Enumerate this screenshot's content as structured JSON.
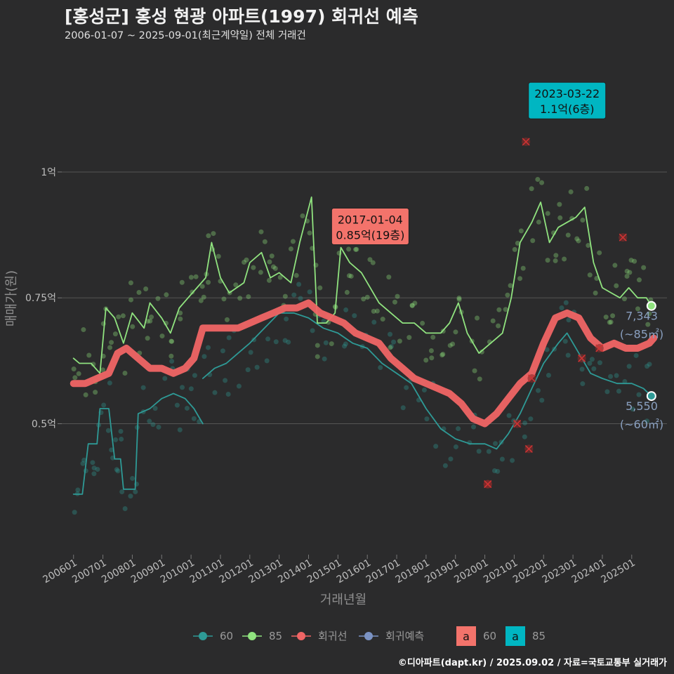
{
  "title": "[홍성군] 홍성 현광 아파트(1997) 회귀선 예측",
  "subtitle": "2006-01-07 ~ 2025-09-01(최근계약일) 전체 거래건",
  "credit": "©디아파트(dapt.kr) / 2025.09.02 / 자료=국토교통부 실거래가",
  "colors": {
    "s60": "#2e9a96",
    "s85": "#90e37f",
    "trend": "#f06565",
    "forecast": "#7b93c4",
    "grid": "#555555",
    "bg": "#2b2b2c"
  },
  "chart_data": {
    "type": "line",
    "xlabel": "거래년월",
    "ylabel": "매매가(원)",
    "x_range": [
      2005.6,
      2026.2
    ],
    "y_range": [
      0.24,
      1.23
    ],
    "y_ticks": [
      {
        "v": 0.5,
        "label": "0.5억"
      },
      {
        "v": 0.75,
        "label": "0.75억"
      },
      {
        "v": 1.0,
        "label": "1억"
      }
    ],
    "x_ticks": [
      "200601",
      "200701",
      "200801",
      "200901",
      "201001",
      "201101",
      "201201",
      "201301",
      "201401",
      "201501",
      "201601",
      "201701",
      "201801",
      "201901",
      "202001",
      "202101",
      "202201",
      "202301",
      "202401",
      "202501"
    ],
    "grid": "horizontal",
    "legend": {
      "placement": "bottom",
      "items": [
        {
          "key": "s60",
          "label": "60"
        },
        {
          "key": "s85",
          "label": "85"
        },
        {
          "key": "trend",
          "label": "회귀선"
        },
        {
          "key": "forecast",
          "label": "회귀예측"
        }
      ],
      "callout_items": [
        {
          "key": "s60",
          "label": "60",
          "letter": "a"
        },
        {
          "key": "s85",
          "label": "85",
          "letter": "a"
        }
      ]
    },
    "series": [
      {
        "name": "60",
        "key": "s60",
        "points": [
          [
            2006.0,
            0.36
          ],
          [
            2006.3,
            0.36
          ],
          [
            2006.5,
            0.46
          ],
          [
            2006.8,
            0.46
          ],
          [
            2006.9,
            0.53
          ],
          [
            2007.2,
            0.53
          ],
          [
            2007.4,
            0.43
          ],
          [
            2007.6,
            0.43
          ],
          [
            2007.7,
            0.37
          ],
          [
            2008.1,
            0.37
          ],
          [
            2008.2,
            0.52
          ],
          [
            2008.6,
            0.53
          ],
          [
            2009.0,
            0.55
          ],
          [
            2009.4,
            0.56
          ],
          [
            2009.8,
            0.55
          ],
          [
            2010.1,
            0.53
          ],
          [
            2010.4,
            0.5
          ]
        ]
      },
      {
        "name": "60",
        "key": "s60",
        "points": [
          [
            2010.4,
            0.59
          ],
          [
            2010.8,
            0.61
          ],
          [
            2011.2,
            0.62
          ],
          [
            2011.6,
            0.64
          ],
          [
            2012.0,
            0.66
          ],
          [
            2012.5,
            0.69
          ],
          [
            2013.0,
            0.72
          ],
          [
            2013.5,
            0.72
          ],
          [
            2014.0,
            0.71
          ],
          [
            2014.5,
            0.69
          ],
          [
            2015.0,
            0.68
          ],
          [
            2015.5,
            0.66
          ],
          [
            2016.0,
            0.65
          ],
          [
            2016.5,
            0.62
          ],
          [
            2017.0,
            0.6
          ],
          [
            2017.5,
            0.58
          ],
          [
            2018.0,
            0.53
          ],
          [
            2018.5,
            0.49
          ],
          [
            2019.0,
            0.47
          ],
          [
            2019.5,
            0.46
          ],
          [
            2020.0,
            0.46
          ],
          [
            2020.4,
            0.45
          ],
          [
            2020.8,
            0.48
          ],
          [
            2021.2,
            0.52
          ],
          [
            2021.6,
            0.57
          ],
          [
            2022.0,
            0.62
          ],
          [
            2022.5,
            0.66
          ],
          [
            2022.8,
            0.68
          ],
          [
            2023.2,
            0.64
          ],
          [
            2023.6,
            0.6
          ],
          [
            2024.0,
            0.59
          ],
          [
            2024.5,
            0.58
          ],
          [
            2025.0,
            0.58
          ],
          [
            2025.4,
            0.57
          ],
          [
            2025.67,
            0.555
          ]
        ]
      },
      {
        "name": "85",
        "key": "s85",
        "points": [
          [
            2006.0,
            0.63
          ],
          [
            2006.2,
            0.62
          ],
          [
            2006.6,
            0.62
          ],
          [
            2006.9,
            0.6
          ],
          [
            2007.1,
            0.73
          ],
          [
            2007.4,
            0.71
          ],
          [
            2007.7,
            0.66
          ],
          [
            2008.0,
            0.72
          ],
          [
            2008.4,
            0.69
          ],
          [
            2008.6,
            0.74
          ],
          [
            2009.0,
            0.71
          ],
          [
            2009.3,
            0.68
          ],
          [
            2009.6,
            0.73
          ],
          [
            2009.9,
            0.75
          ],
          [
            2010.2,
            0.77
          ],
          [
            2010.5,
            0.79
          ],
          [
            2010.7,
            0.86
          ],
          [
            2011.0,
            0.79
          ],
          [
            2011.3,
            0.76
          ],
          [
            2011.8,
            0.78
          ],
          [
            2012.0,
            0.82
          ],
          [
            2012.4,
            0.84
          ],
          [
            2012.7,
            0.79
          ],
          [
            2013.0,
            0.8
          ],
          [
            2013.4,
            0.78
          ],
          [
            2013.7,
            0.86
          ],
          [
            2014.1,
            0.95
          ],
          [
            2014.3,
            0.7
          ],
          [
            2014.6,
            0.7
          ],
          [
            2014.9,
            0.72
          ],
          [
            2015.1,
            0.85
          ],
          [
            2015.4,
            0.82
          ],
          [
            2015.8,
            0.8
          ],
          [
            2016.1,
            0.77
          ],
          [
            2016.4,
            0.74
          ],
          [
            2016.8,
            0.72
          ],
          [
            2017.2,
            0.7
          ],
          [
            2017.6,
            0.7
          ],
          [
            2018.0,
            0.68
          ],
          [
            2018.5,
            0.68
          ],
          [
            2018.8,
            0.7
          ],
          [
            2019.1,
            0.74
          ],
          [
            2019.4,
            0.68
          ],
          [
            2019.8,
            0.64
          ],
          [
            2020.2,
            0.66
          ],
          [
            2020.6,
            0.68
          ],
          [
            2020.9,
            0.75
          ],
          [
            2021.2,
            0.86
          ],
          [
            2021.6,
            0.9
          ],
          [
            2021.9,
            0.94
          ],
          [
            2022.2,
            0.86
          ],
          [
            2022.5,
            0.89
          ],
          [
            2022.8,
            0.9
          ],
          [
            2023.1,
            0.91
          ],
          [
            2023.4,
            0.93
          ],
          [
            2023.7,
            0.82
          ],
          [
            2024.0,
            0.77
          ],
          [
            2024.3,
            0.76
          ],
          [
            2024.6,
            0.75
          ],
          [
            2024.9,
            0.77
          ],
          [
            2025.2,
            0.75
          ],
          [
            2025.5,
            0.75
          ],
          [
            2025.67,
            0.734
          ]
        ]
      },
      {
        "name": "회귀선",
        "key": "trend",
        "points": [
          [
            2006.0,
            0.58
          ],
          [
            2006.4,
            0.58
          ],
          [
            2006.8,
            0.59
          ],
          [
            2007.2,
            0.6
          ],
          [
            2007.5,
            0.64
          ],
          [
            2007.8,
            0.65
          ],
          [
            2008.2,
            0.63
          ],
          [
            2008.6,
            0.61
          ],
          [
            2009.0,
            0.61
          ],
          [
            2009.4,
            0.6
          ],
          [
            2009.8,
            0.61
          ],
          [
            2010.1,
            0.63
          ],
          [
            2010.4,
            0.69
          ],
          [
            2010.8,
            0.69
          ],
          [
            2011.2,
            0.69
          ],
          [
            2011.6,
            0.69
          ],
          [
            2012.0,
            0.7
          ],
          [
            2012.4,
            0.71
          ],
          [
            2012.8,
            0.72
          ],
          [
            2013.2,
            0.73
          ],
          [
            2013.6,
            0.73
          ],
          [
            2014.0,
            0.74
          ],
          [
            2014.4,
            0.72
          ],
          [
            2014.8,
            0.71
          ],
          [
            2015.2,
            0.7
          ],
          [
            2015.6,
            0.68
          ],
          [
            2016.0,
            0.67
          ],
          [
            2016.4,
            0.66
          ],
          [
            2016.8,
            0.63
          ],
          [
            2017.2,
            0.61
          ],
          [
            2017.6,
            0.59
          ],
          [
            2018.0,
            0.58
          ],
          [
            2018.4,
            0.57
          ],
          [
            2018.8,
            0.56
          ],
          [
            2019.2,
            0.54
          ],
          [
            2019.6,
            0.51
          ],
          [
            2020.0,
            0.5
          ],
          [
            2020.4,
            0.52
          ],
          [
            2020.8,
            0.55
          ],
          [
            2021.2,
            0.58
          ],
          [
            2021.6,
            0.6
          ],
          [
            2022.0,
            0.66
          ],
          [
            2022.4,
            0.71
          ],
          [
            2022.8,
            0.72
          ],
          [
            2023.2,
            0.71
          ],
          [
            2023.6,
            0.67
          ],
          [
            2024.0,
            0.65
          ],
          [
            2024.4,
            0.66
          ],
          [
            2024.8,
            0.65
          ],
          [
            2025.2,
            0.65
          ],
          [
            2025.6,
            0.66
          ],
          [
            2025.75,
            0.67
          ]
        ]
      }
    ],
    "end_points": [
      {
        "key": "s85",
        "x": 2025.67,
        "y": 0.734,
        "value": "7,343",
        "unit": "(~85㎡)"
      },
      {
        "key": "s60",
        "x": 2025.67,
        "y": 0.555,
        "value": "5,550",
        "unit": "(~60㎡)"
      }
    ],
    "callouts": [
      {
        "key": "s85",
        "x": 2016.1,
        "y": 0.85,
        "date": "2017-01-04",
        "value": "0.85억(19층)"
      },
      {
        "key": "s60",
        "x": 2022.8,
        "y": 1.1,
        "date": "2023-03-22",
        "value": "1.1억(6층)"
      }
    ],
    "forecast_points": [
      [
        2020.1,
        0.38
      ],
      [
        2020.1,
        0.38
      ],
      [
        2021.1,
        0.5
      ],
      [
        2021.5,
        0.45
      ],
      [
        2021.6,
        0.59
      ],
      [
        2021.4,
        1.06
      ],
      [
        2023.3,
        0.63
      ],
      [
        2023.9,
        0.65
      ],
      [
        2024.7,
        0.87
      ]
    ]
  }
}
